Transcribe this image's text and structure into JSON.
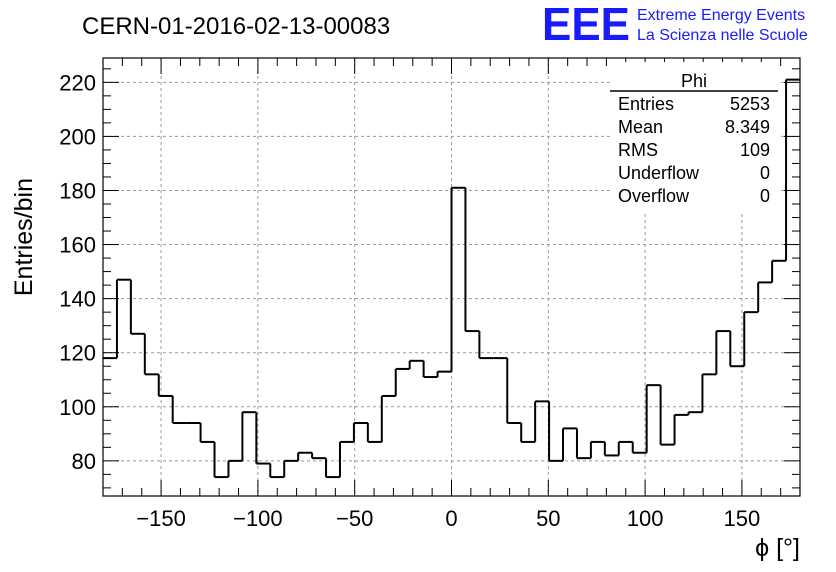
{
  "header": {
    "title": "CERN-01-2016-02-13-00083",
    "logo_mark": "EEE",
    "logo_line1": "Extreme Energy Events",
    "logo_line2": "La Scienza nelle Scuole",
    "logo_color": "#1a1aff"
  },
  "stats": {
    "title": "Phi",
    "rows": [
      {
        "label": "Entries",
        "value": "5253"
      },
      {
        "label": "Mean",
        "value": "8.349"
      },
      {
        "label": "RMS",
        "value": "109"
      },
      {
        "label": "Underflow",
        "value": "0"
      },
      {
        "label": "Overflow",
        "value": "0"
      }
    ]
  },
  "chart_data": {
    "type": "histogram",
    "title": "CERN-01-2016-02-13-00083",
    "xlabel": "ϕ [°]",
    "ylabel": "Entries/bin",
    "xlim": [
      -180,
      180
    ],
    "ylim": [
      67,
      229
    ],
    "grid": true,
    "bin_width": 7.2,
    "bin_edges_start": -180,
    "xticks": [
      -150,
      -100,
      -50,
      0,
      50,
      100,
      150
    ],
    "xtick_labels": [
      "−150",
      "−100",
      "−50",
      "0",
      "50",
      "100",
      "150"
    ],
    "yticks": [
      80,
      100,
      120,
      140,
      160,
      180,
      200,
      220
    ],
    "ytick_labels": [
      "80",
      "100",
      "120",
      "140",
      "160",
      "180",
      "200",
      "220"
    ],
    "values": [
      118,
      147,
      127,
      112,
      104,
      94,
      94,
      87,
      74,
      80,
      98,
      79,
      74,
      80,
      83,
      81,
      74,
      87,
      94,
      87,
      104,
      114,
      117,
      111,
      113,
      181,
      128,
      118,
      118,
      94,
      87,
      102,
      80,
      92,
      81,
      87,
      82,
      87,
      83,
      108,
      86,
      97,
      98,
      112,
      128,
      115,
      135,
      146,
      154,
      221
    ]
  }
}
